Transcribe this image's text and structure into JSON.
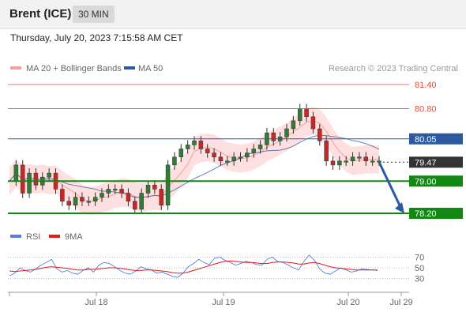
{
  "header": {
    "instrument": "Brent (ICE)",
    "interval": "30 MIN",
    "timestamp": "Thursday, July 20, 2023 7:15:58 AM CET"
  },
  "legend": {
    "ma20": "MA 20 + Bollinger Bands",
    "ma50": "MA 50",
    "copyright": "Research © 2023 Trading Central",
    "rsi": "RSI",
    "rsi_ma": "9MA"
  },
  "colors": {
    "resistance": "#e74c3c",
    "support": "#118811",
    "ma50": "#2c5aa0",
    "current": "#333333",
    "bollinger": "#ffd6d6",
    "ma20": "#f4a0a0",
    "rsi": "#5b7fd6",
    "rsi_ma": "#e31b1b",
    "arrow": "#2c5aa0"
  },
  "chart_data": [
    {
      "type": "candlestick",
      "title": "Brent (ICE)",
      "levels": [
        {
          "value": 81.4,
          "label": "81.40",
          "kind": "resistance"
        },
        {
          "value": 80.8,
          "label": "80.80",
          "kind": "resistance"
        },
        {
          "value": 80.05,
          "label": "80.05",
          "kind": "ma50"
        },
        {
          "value": 79.47,
          "label": "79.47",
          "kind": "current"
        },
        {
          "value": 79.0,
          "label": "79.00",
          "kind": "support"
        },
        {
          "value": 78.2,
          "label": "78.20",
          "kind": "support"
        }
      ],
      "x_ticks": [
        "Jul 18",
        "Jul 19",
        "Jul 20",
        "Jul 29"
      ],
      "projection": {
        "from": 79.47,
        "to": 78.2
      },
      "close_series": [
        79.0,
        79.4,
        78.7,
        79.2,
        78.9,
        79.1,
        79.2,
        78.8,
        78.5,
        78.4,
        78.6,
        78.5,
        78.5,
        78.6,
        78.7,
        78.8,
        78.8,
        78.7,
        78.5,
        78.3,
        78.7,
        78.9,
        78.8,
        78.4,
        79.4,
        79.6,
        79.8,
        79.9,
        80.0,
        79.8,
        79.7,
        79.6,
        79.5,
        79.5,
        79.6,
        79.6,
        79.7,
        79.8,
        79.9,
        80.2,
        80.0,
        80.1,
        80.3,
        80.5,
        80.8,
        80.6,
        80.3,
        80.0,
        79.5,
        79.4,
        79.5,
        79.5,
        79.6,
        79.6,
        79.5,
        79.5,
        79.5
      ]
    },
    {
      "type": "line",
      "title": "RSI",
      "y_ticks": [
        70,
        50,
        30
      ],
      "series": [
        {
          "name": "RSI",
          "values": [
            35,
            40,
            50,
            45,
            42,
            48,
            55,
            60,
            66,
            48,
            42,
            45,
            40,
            38,
            45,
            50,
            42,
            55,
            60,
            58,
            52,
            45,
            40,
            38,
            44,
            52,
            48,
            46,
            40,
            42,
            38,
            34,
            32,
            40,
            52,
            58,
            66,
            60,
            56,
            68,
            70,
            64,
            60,
            55,
            58,
            62,
            60,
            56,
            55,
            66,
            70,
            62,
            60,
            55,
            50,
            46,
            62,
            74,
            64,
            48,
            40,
            38,
            44,
            50,
            46,
            42,
            44,
            48,
            47,
            46,
            45
          ]
        },
        {
          "name": "9MA",
          "values": [
            44,
            43,
            44,
            45,
            46,
            47,
            49,
            51,
            52,
            51,
            50,
            49,
            47,
            46,
            46,
            47,
            47,
            48,
            49,
            50,
            50,
            49,
            48,
            46,
            45,
            45,
            46,
            46,
            45,
            44,
            43,
            41,
            40,
            40,
            42,
            45,
            48,
            51,
            54,
            57,
            60,
            62,
            63,
            62,
            61,
            60,
            60,
            59,
            58,
            58,
            60,
            61,
            61,
            60,
            59,
            57,
            57,
            59,
            60,
            58,
            55,
            52,
            50,
            49,
            48,
            47,
            46,
            46,
            46,
            46,
            46
          ]
        }
      ]
    }
  ]
}
